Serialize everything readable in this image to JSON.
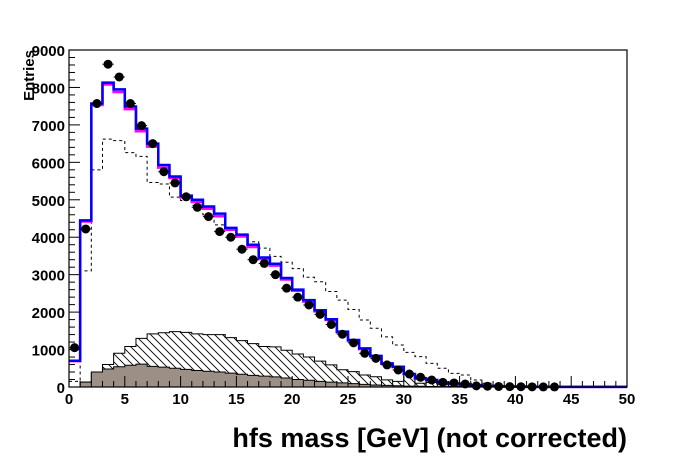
{
  "chart_data": {
    "type": "histogram",
    "xlabel": "hfs mass [GeV] (not corrected)",
    "ylabel": "Entries",
    "xlim": [
      0,
      50
    ],
    "ylim": [
      0,
      9000
    ],
    "x_ticks": [
      "0",
      "5",
      "10",
      "15",
      "20",
      "25",
      "30",
      "35",
      "40",
      "45",
      "50"
    ],
    "y_ticks": [
      "0",
      "1000",
      "2000",
      "3000",
      "4000",
      "5000",
      "6000",
      "7000",
      "8000",
      "9000"
    ],
    "bin_edges_start": 0,
    "bin_width": 1,
    "grid": false,
    "colors": {
      "total_mc": "#0000ff",
      "signal_mc": "#ff00ff",
      "dashed": "#000000",
      "hatched": "#000000",
      "filled": "#9c8f86",
      "data": "#000000"
    },
    "series": [
      {
        "style": "hatched-histogram",
        "values": [
          0,
          130,
          370,
          600,
          900,
          1080,
          1300,
          1420,
          1450,
          1480,
          1460,
          1420,
          1400,
          1400,
          1320,
          1240,
          1160,
          1080,
          1070,
          980,
          880,
          800,
          690,
          590,
          460,
          410,
          320,
          275,
          190,
          150,
          340,
          100,
          120,
          60,
          20,
          20,
          10,
          10,
          5,
          5,
          0,
          0,
          0,
          0,
          0,
          0,
          0,
          0,
          0,
          0
        ]
      },
      {
        "style": "filled-histogram",
        "values": [
          0,
          130,
          400,
          480,
          540,
          580,
          610,
          550,
          530,
          500,
          470,
          440,
          420,
          400,
          370,
          340,
          310,
          290,
          270,
          240,
          200,
          180,
          150,
          130,
          110,
          90,
          70,
          55,
          45,
          35,
          25,
          20,
          15,
          10,
          10,
          5,
          5,
          0,
          0,
          0,
          0,
          0,
          0,
          0,
          0,
          0,
          0,
          0,
          0,
          0
        ]
      },
      {
        "style": "dashed-histogram",
        "values": [
          150,
          3100,
          5800,
          6620,
          6580,
          6260,
          6160,
          5460,
          5420,
          5070,
          4980,
          4850,
          4600,
          4330,
          4200,
          4020,
          3880,
          3710,
          3490,
          3330,
          3160,
          2930,
          2810,
          2550,
          2320,
          2070,
          1790,
          1570,
          1340,
          1120,
          925,
          810,
          630,
          500,
          365,
          320,
          187,
          100,
          50,
          30,
          20,
          10,
          5,
          0,
          0,
          0,
          0,
          0,
          0,
          0
        ]
      },
      {
        "style": "magenta-histogram",
        "values": [
          690,
          4420,
          7530,
          8080,
          7880,
          7420,
          6830,
          6420,
          5860,
          5580,
          5060,
          4940,
          4760,
          4560,
          4200,
          4020,
          3740,
          3420,
          3240,
          2870,
          2570,
          2280,
          2020,
          1790,
          1460,
          1230,
          1010,
          815,
          620,
          530,
          340,
          225,
          185,
          115,
          88,
          68,
          48,
          30,
          20,
          15,
          10,
          5,
          5,
          5,
          5,
          5,
          5,
          5,
          5,
          5
        ]
      },
      {
        "style": "blue-histogram",
        "values": [
          700,
          4450,
          7570,
          8130,
          7950,
          7490,
          6900,
          6500,
          5930,
          5620,
          5110,
          5000,
          4820,
          4630,
          4250,
          4070,
          3800,
          3460,
          3290,
          2910,
          2600,
          2320,
          2050,
          1810,
          1480,
          1255,
          1030,
          830,
          630,
          540,
          347,
          230,
          187,
          120,
          90,
          70,
          50,
          30,
          20,
          15,
          10,
          5,
          5,
          5,
          5,
          5,
          5,
          5,
          5,
          5
        ]
      },
      {
        "style": "data-points",
        "x": [
          0.5,
          1.5,
          2.5,
          3.5,
          4.5,
          5.5,
          6.5,
          7.5,
          8.5,
          9.5,
          10.5,
          11.5,
          12.5,
          13.5,
          14.5,
          15.5,
          16.5,
          17.5,
          18.5,
          19.5,
          20.5,
          21.5,
          22.5,
          23.5,
          24.5,
          25.5,
          26.5,
          27.5,
          28.5,
          29.5,
          30.5,
          31.5,
          32.5,
          33.5,
          34.5,
          35.5,
          36.5,
          37.5,
          38.5,
          39.5,
          40.5,
          41.5,
          42.5,
          43.5
        ],
        "values": [
          1050,
          4220,
          7570,
          8620,
          8280,
          7570,
          6980,
          6500,
          5750,
          5450,
          5080,
          4800,
          4550,
          4150,
          4000,
          3680,
          3400,
          3300,
          3000,
          2640,
          2400,
          2190,
          1940,
          1670,
          1410,
          1180,
          900,
          765,
          590,
          455,
          347,
          260,
          187,
          125,
          107,
          80,
          30,
          20,
          15,
          10,
          8,
          5,
          3,
          2
        ]
      }
    ]
  }
}
